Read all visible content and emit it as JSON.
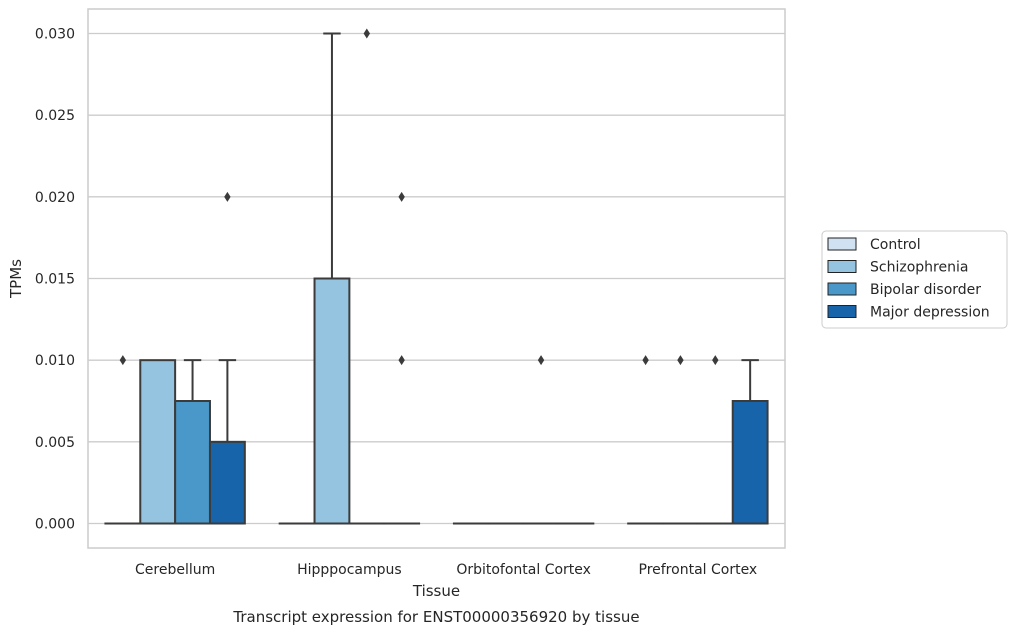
{
  "chart_data": {
    "type": "box",
    "caption": "Transcript expression for ENST00000356920 by tissue",
    "xlabel": "Tissue",
    "ylabel": "TPMs",
    "ylim": [
      -0.0015,
      0.0315
    ],
    "yticks": [
      "0.000",
      "0.005",
      "0.010",
      "0.015",
      "0.020",
      "0.025",
      "0.030"
    ],
    "ytick_values": [
      0,
      0.005,
      0.01,
      0.015,
      0.02,
      0.025,
      0.03
    ],
    "grid": true,
    "legend_position": "right",
    "categories": [
      "Cerebellum",
      "Hipppocampus",
      "Orbitofontal Cortex",
      "Prefrontal Cortex"
    ],
    "series": [
      {
        "name": "Control",
        "color": "#d0e1f2",
        "boxes": [
          {
            "q1": 0,
            "median": 0,
            "q3": 0,
            "whisker_low": 0,
            "whisker_high": 0,
            "outliers": [
              0.01
            ]
          },
          {
            "q1": 0,
            "median": 0,
            "q3": 0,
            "whisker_low": 0,
            "whisker_high": 0,
            "outliers": []
          },
          {
            "q1": 0,
            "median": 0,
            "q3": 0,
            "whisker_low": 0,
            "whisker_high": 0,
            "outliers": []
          },
          {
            "q1": 0,
            "median": 0,
            "q3": 0,
            "whisker_low": 0,
            "whisker_high": 0,
            "outliers": [
              0.01
            ]
          }
        ]
      },
      {
        "name": "Schizophrenia",
        "color": "#94c4df",
        "boxes": [
          {
            "q1": 0,
            "median": 0,
            "q3": 0.01,
            "whisker_low": 0,
            "whisker_high": 0.01,
            "outliers": []
          },
          {
            "q1": 0,
            "median": 0,
            "q3": 0.015,
            "whisker_low": 0,
            "whisker_high": 0.03,
            "outliers": []
          },
          {
            "q1": 0,
            "median": 0,
            "q3": 0,
            "whisker_low": 0,
            "whisker_high": 0,
            "outliers": []
          },
          {
            "q1": 0,
            "median": 0,
            "q3": 0,
            "whisker_low": 0,
            "whisker_high": 0,
            "outliers": [
              0.01
            ]
          }
        ]
      },
      {
        "name": "Bipolar disorder",
        "color": "#4a98c9",
        "boxes": [
          {
            "q1": 0,
            "median": 0,
            "q3": 0.0075,
            "whisker_low": 0,
            "whisker_high": 0.01,
            "outliers": []
          },
          {
            "q1": 0,
            "median": 0,
            "q3": 0,
            "whisker_low": 0,
            "whisker_high": 0,
            "outliers": [
              0.03
            ]
          },
          {
            "q1": 0,
            "median": 0,
            "q3": 0,
            "whisker_low": 0,
            "whisker_high": 0,
            "outliers": [
              0.01
            ]
          },
          {
            "q1": 0,
            "median": 0,
            "q3": 0,
            "whisker_low": 0,
            "whisker_high": 0,
            "outliers": [
              0.01
            ]
          }
        ]
      },
      {
        "name": "Major depression",
        "color": "#1764ab",
        "boxes": [
          {
            "q1": 0,
            "median": 0,
            "q3": 0.005,
            "whisker_low": 0,
            "whisker_high": 0.01,
            "outliers": [
              0.02
            ]
          },
          {
            "q1": 0,
            "median": 0,
            "q3": 0,
            "whisker_low": 0,
            "whisker_high": 0,
            "outliers": [
              0.01,
              0.02
            ]
          },
          {
            "q1": 0,
            "median": 0,
            "q3": 0,
            "whisker_low": 0,
            "whisker_high": 0,
            "outliers": []
          },
          {
            "q1": 0,
            "median": 0,
            "q3": 0.0075,
            "whisker_low": 0,
            "whisker_high": 0.01,
            "outliers": []
          }
        ]
      }
    ]
  }
}
